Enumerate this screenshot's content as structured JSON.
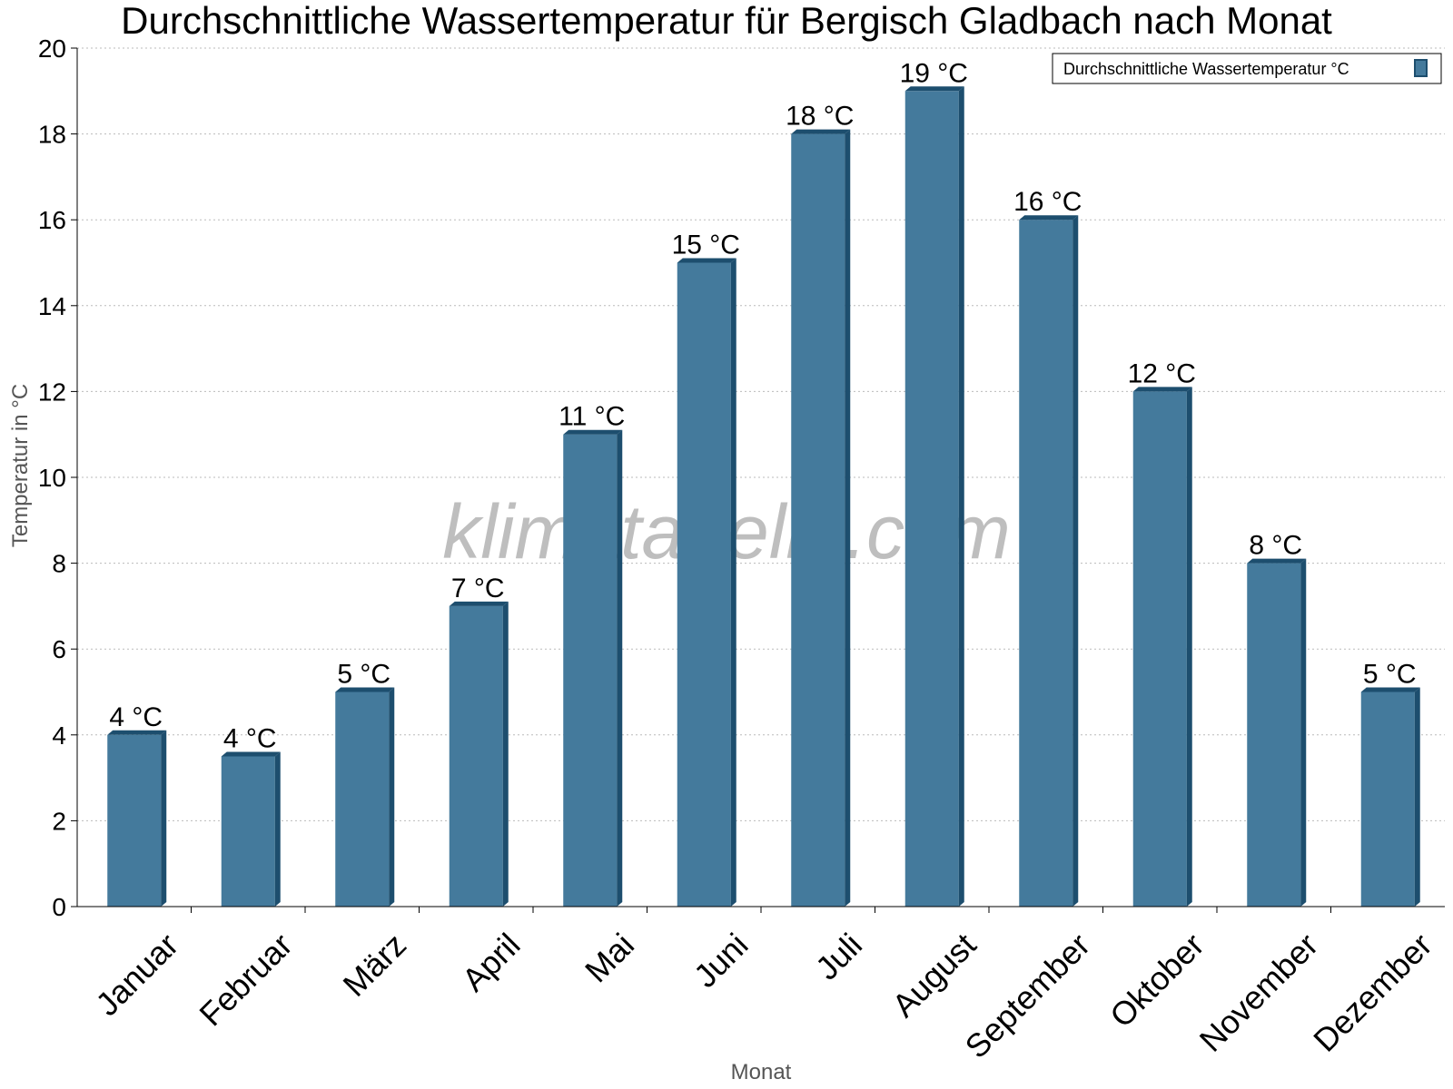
{
  "chart_data": {
    "type": "bar",
    "title": "Durchschnittliche Wassertemperatur für Bergisch Gladbach nach Monat",
    "xlabel": "Monat",
    "ylabel": "Temperatur in °C",
    "categories": [
      "Januar",
      "Februar",
      "März",
      "April",
      "Mai",
      "Juni",
      "Juli",
      "August",
      "September",
      "Oktober",
      "November",
      "Dezember"
    ],
    "series": [
      {
        "name": "Durchschnittliche Wassertemperatur °C",
        "values": [
          4.0,
          3.5,
          5.0,
          7.0,
          11.0,
          15.0,
          18.0,
          19.0,
          16.0,
          12.0,
          8.0,
          5.0
        ],
        "labels": [
          "4 °C",
          "4 °C",
          "5 °C",
          "7 °C",
          "11 °C",
          "15 °C",
          "18 °C",
          "19 °C",
          "16 °C",
          "12 °C",
          "8 °C",
          "5 °C"
        ]
      }
    ],
    "yticks": [
      "0",
      "2",
      "4",
      "6",
      "8",
      "10",
      "12",
      "14",
      "16",
      "18",
      "20"
    ],
    "ylim": [
      0,
      20
    ],
    "grid": true,
    "legend_position": "top-right",
    "colors": {
      "bar": "#447a9c",
      "bar_side": "#1d4e6e",
      "bar_top": "#1d4e6e",
      "grid": "#bbbbbb",
      "axis": "#000000"
    }
  },
  "watermark": "klimatabelle.com"
}
